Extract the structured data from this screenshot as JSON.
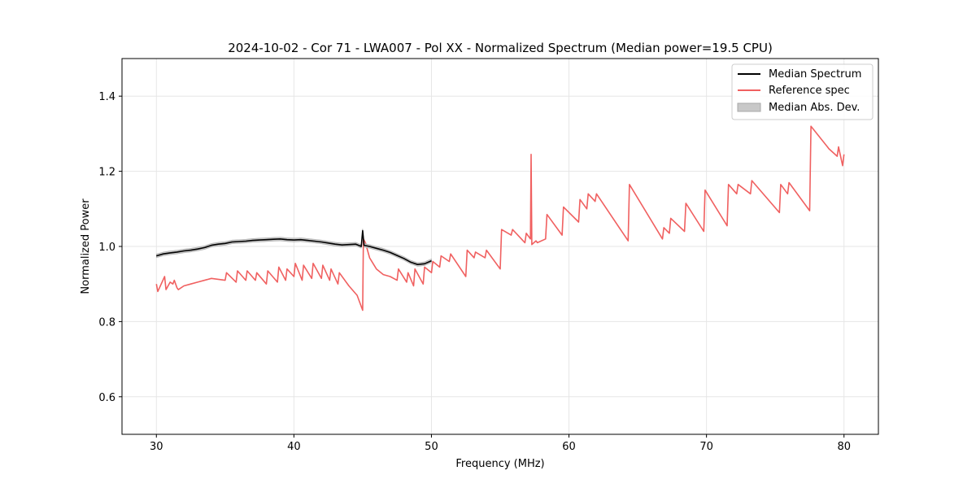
{
  "chart_data": {
    "type": "line",
    "title": "2024-10-02 - Cor 71 - LWA007 - Pol XX - Normalized Spectrum (Median power=19.5 CPU)",
    "xlabel": "Frequency (MHz)",
    "ylabel": "Normalized Power",
    "xlim": [
      27.5,
      82.5
    ],
    "ylim": [
      0.5,
      1.5
    ],
    "xticks": [
      30,
      40,
      50,
      60,
      70,
      80
    ],
    "yticks": [
      0.6,
      0.8,
      1.0,
      1.2,
      1.4
    ],
    "xtick_labels": [
      "30",
      "40",
      "50",
      "60",
      "70",
      "80"
    ],
    "ytick_labels": [
      "0.6",
      "0.8",
      "1.0",
      "1.2",
      "1.4"
    ],
    "grid": true,
    "legend_position": "top-right",
    "colors": {
      "median": "#000000",
      "reference": "#f06060",
      "mad_fill": "#c8c8c8",
      "mad_edge": "#a8a8a8",
      "grid": "#e6e6e6"
    },
    "legend": [
      "Median Spectrum",
      "Reference spec",
      "Median Abs. Dev."
    ],
    "series": [
      {
        "name": "Median Spectrum",
        "x": [
          30.0,
          30.5,
          31.0,
          31.5,
          32.0,
          32.5,
          33.0,
          33.5,
          34.0,
          34.5,
          35.0,
          35.5,
          36.0,
          36.5,
          37.0,
          37.5,
          38.0,
          38.5,
          39.0,
          39.5,
          40.0,
          40.5,
          41.0,
          41.5,
          42.0,
          42.5,
          43.0,
          43.5,
          44.0,
          44.5,
          44.9,
          45.0,
          45.1,
          45.5,
          46.0,
          46.5,
          47.0,
          47.5,
          48.0,
          48.5,
          49.0,
          49.5,
          50.0
        ],
        "y": [
          0.975,
          0.98,
          0.983,
          0.985,
          0.988,
          0.99,
          0.993,
          0.997,
          1.003,
          1.006,
          1.008,
          1.012,
          1.013,
          1.014,
          1.016,
          1.017,
          1.018,
          1.019,
          1.02,
          1.018,
          1.017,
          1.018,
          1.016,
          1.014,
          1.012,
          1.009,
          1.006,
          1.004,
          1.005,
          1.006,
          1.0,
          1.042,
          1.003,
          1.0,
          0.995,
          0.99,
          0.984,
          0.976,
          0.968,
          0.958,
          0.952,
          0.954,
          0.962
        ]
      },
      {
        "name": "Reference spec",
        "x": [
          30.0,
          30.1,
          30.6,
          30.7,
          31.0,
          31.2,
          31.3,
          31.5,
          31.6,
          32.0,
          32.5,
          33.0,
          34.0,
          35.0,
          35.1,
          35.8,
          35.9,
          36.5,
          36.6,
          37.2,
          37.3,
          38.0,
          38.1,
          38.8,
          38.9,
          39.4,
          39.5,
          40.0,
          40.1,
          40.6,
          40.7,
          41.3,
          41.4,
          42.0,
          42.1,
          42.6,
          42.7,
          43.2,
          43.3,
          44.0,
          44.6,
          45.0,
          45.05,
          45.2,
          45.5,
          46.0,
          46.5,
          47.0,
          47.5,
          47.6,
          48.2,
          48.3,
          48.7,
          48.8,
          49.4,
          49.5,
          50.0,
          50.1,
          50.6,
          50.7,
          51.3,
          51.4,
          52.5,
          52.6,
          53.1,
          53.2,
          53.9,
          54.0,
          55.0,
          55.1,
          55.8,
          55.9,
          56.8,
          56.9,
          57.2,
          57.25,
          57.3,
          57.6,
          57.7,
          58.3,
          58.4,
          59.5,
          59.6,
          60.7,
          60.8,
          61.3,
          61.4,
          61.9,
          62.0,
          64.3,
          64.4,
          66.8,
          66.9,
          67.3,
          67.4,
          68.4,
          68.5,
          69.8,
          69.9,
          71.5,
          71.6,
          72.2,
          72.3,
          73.2,
          73.3,
          75.3,
          75.4,
          75.9,
          76.0,
          77.5,
          77.6,
          78.8,
          78.9,
          79.5,
          79.6,
          79.9,
          80.0
        ],
        "y": [
          0.9,
          0.88,
          0.92,
          0.885,
          0.905,
          0.9,
          0.91,
          0.89,
          0.885,
          0.895,
          0.9,
          0.905,
          0.915,
          0.91,
          0.93,
          0.905,
          0.935,
          0.91,
          0.935,
          0.91,
          0.93,
          0.9,
          0.935,
          0.905,
          0.945,
          0.91,
          0.94,
          0.92,
          0.955,
          0.91,
          0.95,
          0.915,
          0.955,
          0.915,
          0.95,
          0.91,
          0.94,
          0.9,
          0.93,
          0.895,
          0.87,
          0.83,
          1.02,
          1.01,
          0.97,
          0.94,
          0.925,
          0.92,
          0.91,
          0.94,
          0.905,
          0.93,
          0.895,
          0.94,
          0.9,
          0.945,
          0.93,
          0.96,
          0.945,
          0.975,
          0.96,
          0.98,
          0.92,
          0.99,
          0.97,
          0.985,
          0.97,
          0.99,
          0.94,
          1.045,
          1.03,
          1.045,
          1.01,
          1.035,
          1.02,
          1.245,
          1.005,
          1.015,
          1.01,
          1.02,
          1.085,
          1.03,
          1.105,
          1.065,
          1.125,
          1.1,
          1.14,
          1.12,
          1.14,
          1.015,
          1.165,
          1.02,
          1.05,
          1.035,
          1.075,
          1.04,
          1.115,
          1.04,
          1.15,
          1.055,
          1.165,
          1.14,
          1.165,
          1.14,
          1.175,
          1.09,
          1.165,
          1.14,
          1.17,
          1.095,
          1.32,
          1.265,
          1.26,
          1.24,
          1.265,
          1.215,
          1.245
        ]
      }
    ]
  }
}
